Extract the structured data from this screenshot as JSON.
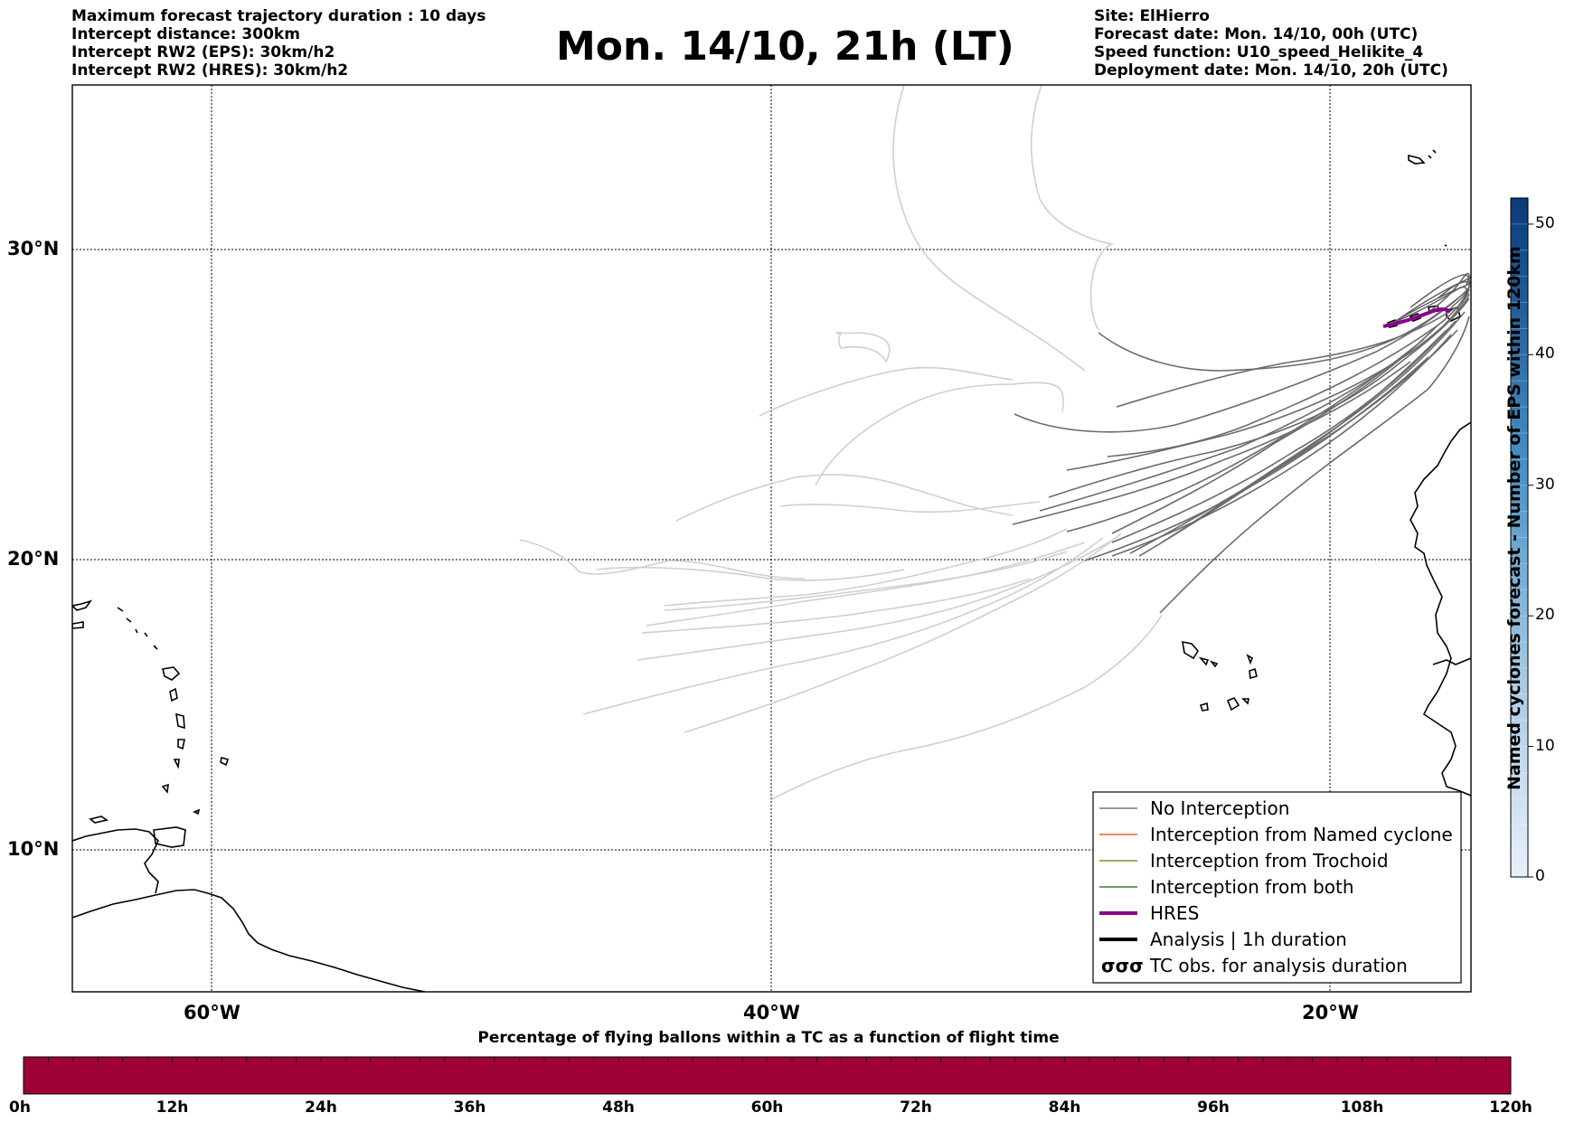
{
  "header": {
    "left_lines": [
      "Maximum forecast trajectory duration : 10 days",
      "Intercept distance: 300km",
      "Intercept RW2 (EPS):  30km/h2",
      "Intercept RW2 (HRES): 30km/h2"
    ],
    "title": "Mon. 14/10, 21h (LT)",
    "right_lines": [
      "Site: ElHierro",
      "Forecast date: Mon. 14/10, 00h (UTC)",
      "Speed function: U10_speed_Helikite_4",
      "Deployment date: Mon. 14/10, 20h (UTC)"
    ]
  },
  "map": {
    "lat_labels": [
      "30°N",
      "20°N",
      "10°N"
    ],
    "lon_labels": [
      "60°W",
      "40°W",
      "20°W"
    ],
    "lon_range": [
      -65,
      -15
    ],
    "lat_range": [
      5.3,
      35.5
    ],
    "colors": {
      "no_interception": "#6b6b6b",
      "faded": "#cfcfcf",
      "hres": "#8b008b",
      "coast": "#000000"
    }
  },
  "legend": {
    "items": [
      {
        "label": "No Interception",
        "color": "#777777",
        "style": "thin"
      },
      {
        "label": "Interception from Named cyclone",
        "color": "#e8622a",
        "style": "thin"
      },
      {
        "label": "Interception from Trochoid",
        "color": "#8a8a2a",
        "style": "thin"
      },
      {
        "label": "Interception from both",
        "color": "#2a8a2a",
        "style": "thin"
      },
      {
        "label": "HRES",
        "color": "#8b008b",
        "style": "thick"
      },
      {
        "label": "Analysis | 1h duration",
        "color": "#000000",
        "style": "thick"
      },
      {
        "label": "TC obs. for analysis duration",
        "color": "#000000",
        "style": "symbol"
      }
    ]
  },
  "colorbar": {
    "label": "Named cyclones forecast - Number of EPS within 120km",
    "ticks": [
      "0",
      "10",
      "20",
      "30",
      "40",
      "50"
    ],
    "max": 52,
    "color_low": "#e8f0fa",
    "color_high": "#0a3a7a"
  },
  "bottom_bar": {
    "title": "Percentage of flying ballons within a TC as a function of flight time",
    "ticks": [
      "0h",
      "12h",
      "24h",
      "36h",
      "48h",
      "60h",
      "72h",
      "84h",
      "96h",
      "108h",
      "120h"
    ],
    "color": "#9e0038"
  }
}
